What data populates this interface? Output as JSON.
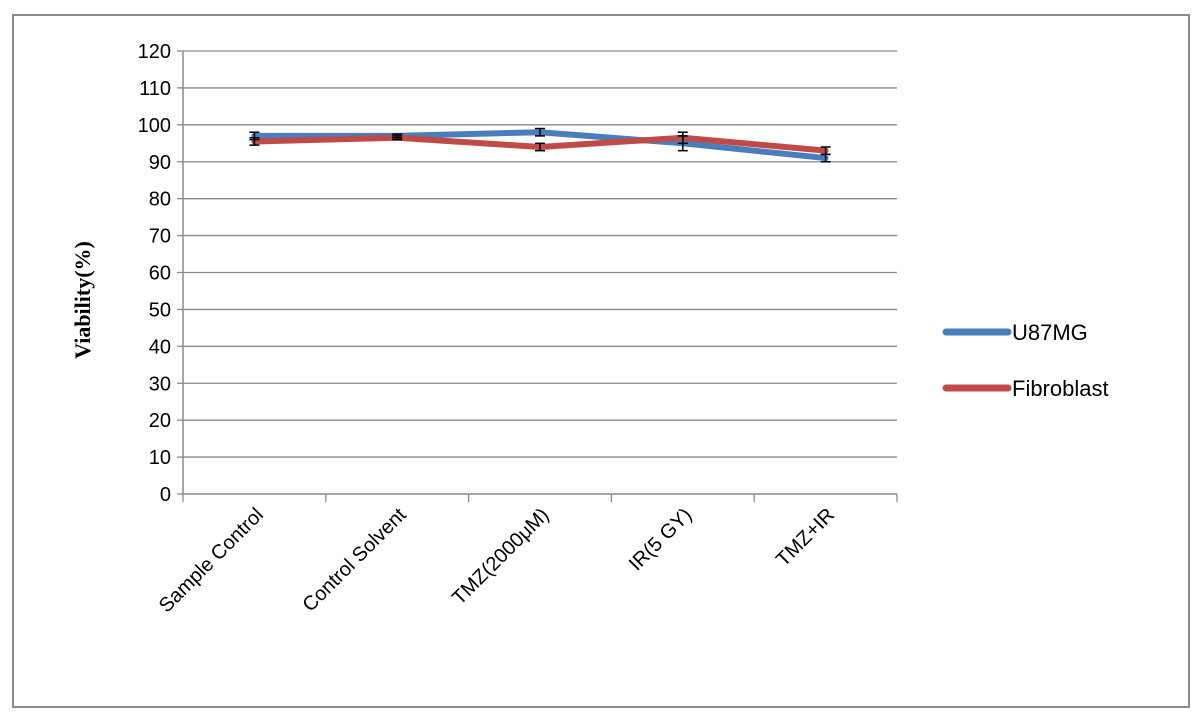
{
  "chart_data": {
    "type": "line",
    "categories": [
      "Sample Control",
      "Control Solvent",
      "TMZ(2000μM)",
      "IR(5 GY)",
      "TMZ+IR"
    ],
    "series": [
      {
        "name": "U87MG",
        "values": [
          97,
          97,
          98,
          95,
          91
        ],
        "error": [
          1,
          0.5,
          1,
          2,
          1
        ],
        "color": "#4a7ebb"
      },
      {
        "name": "Fibroblast",
        "values": [
          95.5,
          96.5,
          94,
          96.5,
          93
        ],
        "error": [
          1,
          0.5,
          1,
          1.5,
          1
        ],
        "color": "#be4b48"
      }
    ],
    "title": "",
    "xlabel": "",
    "ylabel": "Viability(%)",
    "ylim": [
      0,
      120
    ],
    "yticks": [
      "0",
      "10",
      "20",
      "30",
      "40",
      "50",
      "60",
      "70",
      "80",
      "90",
      "100",
      "110",
      "120"
    ],
    "grid": true,
    "legend": "right"
  }
}
